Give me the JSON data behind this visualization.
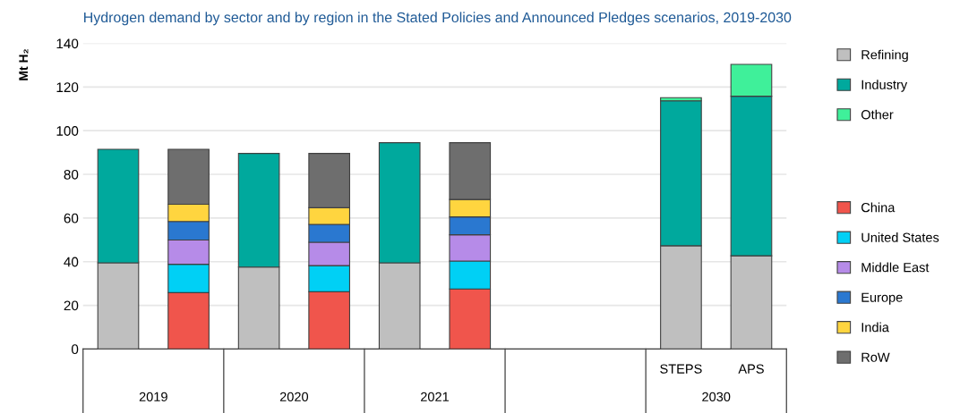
{
  "chart_data": {
    "type": "bar",
    "stacked": true,
    "title": "Hydrogen demand by sector and by region in the Stated Policies and Announced Pledges scenarios, 2019-2030",
    "ylabel": "Mt H₂",
    "categories": [
      null,
      null,
      null,
      null,
      null,
      null,
      null,
      null,
      "STEPS",
      "APS"
    ],
    "annotations": [
      "2019",
      "2020",
      "2021",
      "2030"
    ],
    "ylim": [
      0,
      140
    ],
    "yticks": [
      0,
      20,
      40,
      60,
      80,
      100,
      120,
      140
    ],
    "grid": "y",
    "legend": "right",
    "series": [
      {
        "name": "Refining",
        "color": "#bfbfbf",
        "values": [
          39.5,
          null,
          37.5,
          null,
          39.5,
          null,
          null,
          null,
          47.3,
          42.7
        ]
      },
      {
        "name": "Industry",
        "color": "#00a99d",
        "values": [
          52,
          null,
          52.1,
          null,
          55,
          null,
          null,
          null,
          66.4,
          73.1
        ]
      },
      {
        "name": "Other",
        "color": "#3ff09a",
        "values": [
          null,
          null,
          null,
          null,
          null,
          null,
          null,
          null,
          1.4,
          14.6
        ]
      },
      {
        "name": "China",
        "color": "#f0554c",
        "values": [
          null,
          25.8,
          null,
          26.2,
          null,
          27.5,
          null,
          null,
          null,
          null
        ]
      },
      {
        "name": "United States",
        "color": "#00d0f5",
        "values": [
          null,
          13,
          null,
          12,
          null,
          12.8,
          null,
          null,
          null,
          null
        ]
      },
      {
        "name": "Middle East",
        "color": "#b68be8",
        "values": [
          null,
          11.1,
          null,
          10.7,
          null,
          12,
          null,
          null,
          null,
          null
        ]
      },
      {
        "name": "Europe",
        "color": "#2a78d0",
        "values": [
          null,
          8.5,
          null,
          8.2,
          null,
          8.2,
          null,
          null,
          null,
          null
        ]
      },
      {
        "name": "India",
        "color": "#ffd53f",
        "values": [
          null,
          7.9,
          null,
          7.6,
          null,
          8,
          null,
          null,
          null,
          null
        ]
      },
      {
        "name": "RoW",
        "color": "#6e6e6e",
        "values": [
          null,
          25.2,
          null,
          24.9,
          null,
          26,
          null,
          null,
          null,
          null
        ]
      }
    ]
  }
}
